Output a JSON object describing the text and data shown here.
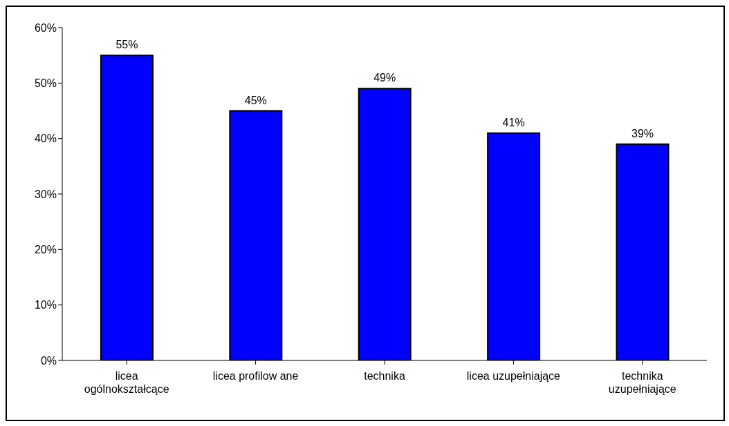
{
  "chart_data": {
    "type": "bar",
    "categories": [
      "licea ogólnokształcące",
      "licea profilow ane",
      "technika",
      "licea uzupełniające",
      "technika uzupełniające"
    ],
    "values": [
      55,
      45,
      49,
      41,
      39
    ],
    "value_labels": [
      "55%",
      "45%",
      "49%",
      "41%",
      "39%"
    ],
    "color": "#0000ff",
    "ylim": [
      0,
      60
    ],
    "yticks": [
      {
        "value": 0,
        "label": "0%"
      },
      {
        "value": 10,
        "label": "10%"
      },
      {
        "value": 20,
        "label": "20%"
      },
      {
        "value": 30,
        "label": "30%"
      },
      {
        "value": 40,
        "label": "40%"
      },
      {
        "value": 50,
        "label": "50%"
      },
      {
        "value": 60,
        "label": "60%"
      }
    ],
    "grid": false,
    "legend": false
  }
}
